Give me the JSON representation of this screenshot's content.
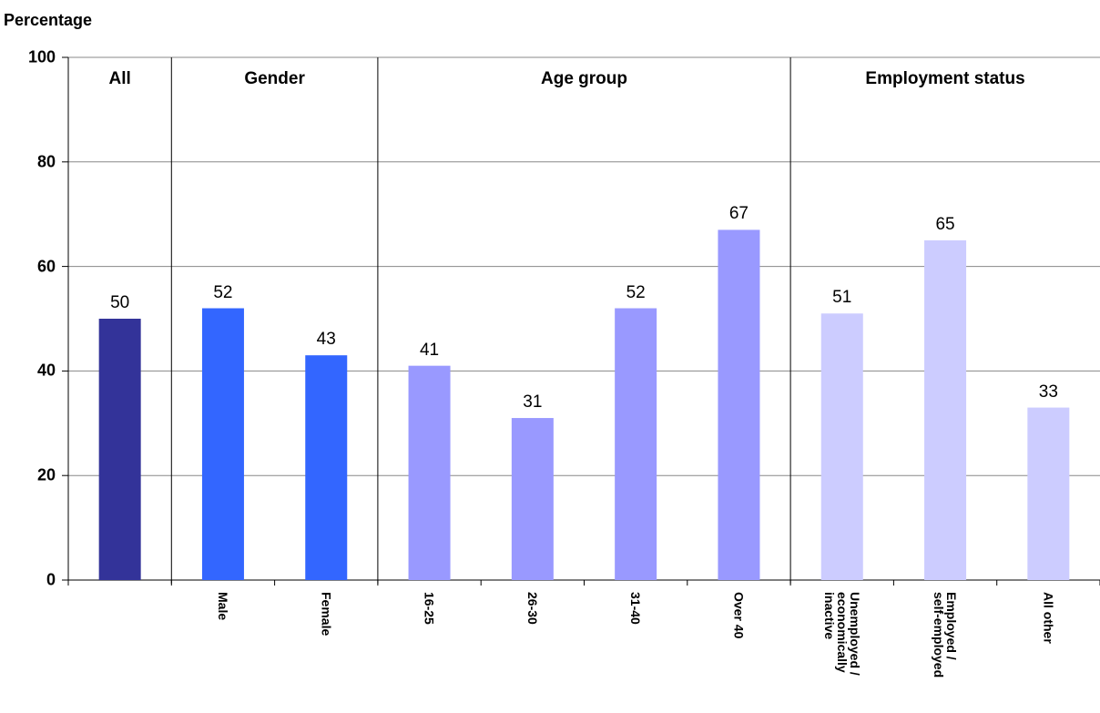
{
  "chart_data": {
    "type": "bar",
    "y_label": "Percentage",
    "ylim": [
      0,
      100
    ],
    "yticks": [
      0,
      20,
      40,
      60,
      80,
      100
    ],
    "grid": true,
    "groups": [
      {
        "label": "All",
        "color": "#333399",
        "categories": [
          null
        ],
        "values": [
          50
        ]
      },
      {
        "label": "Gender",
        "color": "#3366ff",
        "categories": [
          "Male",
          "Female"
        ],
        "values": [
          52,
          43
        ]
      },
      {
        "label": "Age group",
        "color": "#9999ff",
        "categories": [
          "16-25",
          "26-30",
          "31-40",
          "Over 40"
        ],
        "values": [
          41,
          31,
          52,
          67
        ]
      },
      {
        "label": "Employment status",
        "color": "#ccccff",
        "categories": [
          "Unemployed /\neconomically\ninactive",
          "Employed /\nself-employed",
          "All other"
        ],
        "values": [
          51,
          65,
          33
        ]
      }
    ]
  }
}
